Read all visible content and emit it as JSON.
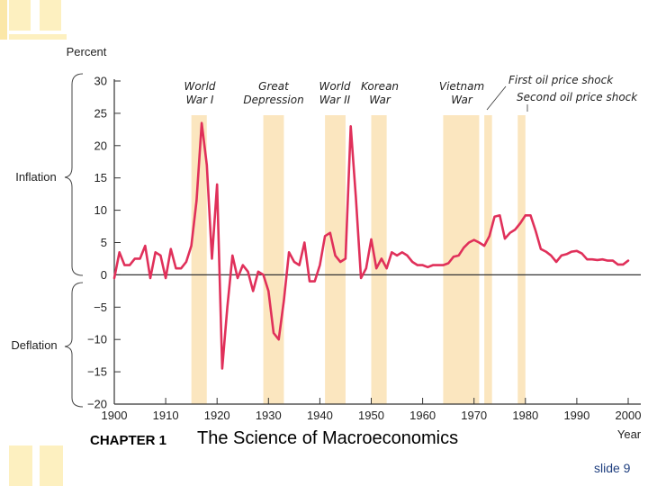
{
  "footer": {
    "chapter": "CHAPTER 1",
    "title": "The Science of Macroeconomics",
    "slide": "slide 9"
  },
  "colors": {
    "line": "#e0305a",
    "shade": "#fbe6bf",
    "deco": "#fdf0c0",
    "axis": "#333333"
  },
  "chart_data": {
    "type": "line",
    "title": "",
    "ylabel": "Percent",
    "xlabel": "Year",
    "xlim": [
      1900,
      2000
    ],
    "ylim": [
      -20,
      30
    ],
    "x_ticks": [
      "1900",
      "1910",
      "1920",
      "1930",
      "1940",
      "1950",
      "1960",
      "1970",
      "1980",
      "1990",
      "2000"
    ],
    "y_ticks": [
      "30",
      "25",
      "20",
      "15",
      "10",
      "5",
      "0",
      "−5",
      "−10",
      "−15",
      "−20"
    ],
    "region_labels": {
      "inflation": "Inflation",
      "deflation": "Deflation"
    },
    "events": [
      {
        "lines": [
          "World",
          "War I"
        ],
        "start": 1915,
        "end": 1918
      },
      {
        "lines": [
          "Great",
          "Depression"
        ],
        "start": 1929,
        "end": 1933
      },
      {
        "lines": [
          "World",
          "War II"
        ],
        "start": 1941,
        "end": 1945
      },
      {
        "lines": [
          "Korean",
          "War"
        ],
        "start": 1950,
        "end": 1953
      },
      {
        "lines": [
          "Vietnam",
          "War"
        ],
        "start": 1964,
        "end": 1971
      },
      {
        "lines": [
          "First oil price shock"
        ],
        "start": 1972,
        "end": 1973.5
      },
      {
        "lines": [
          "Second oil price shock"
        ],
        "start": 1978.5,
        "end": 1980
      }
    ],
    "series": [
      {
        "name": "Inflation rate",
        "x": [
          1900,
          1901,
          1902,
          1903,
          1904,
          1905,
          1906,
          1907,
          1908,
          1909,
          1910,
          1911,
          1912,
          1913,
          1914,
          1915,
          1916,
          1917,
          1918,
          1919,
          1920,
          1921,
          1922,
          1923,
          1924,
          1925,
          1926,
          1927,
          1928,
          1929,
          1930,
          1931,
          1932,
          1933,
          1934,
          1935,
          1936,
          1937,
          1938,
          1939,
          1940,
          1941,
          1942,
          1943,
          1944,
          1945,
          1946,
          1947,
          1948,
          1949,
          1950,
          1951,
          1952,
          1953,
          1954,
          1955,
          1956,
          1957,
          1958,
          1959,
          1960,
          1961,
          1962,
          1963,
          1964,
          1965,
          1966,
          1967,
          1968,
          1969,
          1970,
          1971,
          1972,
          1973,
          1974,
          1975,
          1976,
          1977,
          1978,
          1979,
          1980,
          1981,
          1982,
          1983,
          1984,
          1985,
          1986,
          1987,
          1988,
          1989,
          1990,
          1991,
          1992,
          1993,
          1994,
          1995,
          1996,
          1997,
          1998,
          1999,
          2000
        ],
        "y": [
          -0.5,
          3.5,
          1.5,
          1.5,
          2.5,
          2.5,
          4.5,
          -0.5,
          3.5,
          3,
          -0.5,
          4,
          1,
          1,
          2,
          4.5,
          11.5,
          23.5,
          17,
          2.5,
          14,
          -14.5,
          -5,
          3,
          -0.5,
          1.5,
          0.5,
          -2.5,
          0.5,
          0,
          -2.5,
          -9,
          -10,
          -4,
          3.5,
          2,
          1.5,
          5,
          -1,
          -1,
          1.5,
          6,
          6.5,
          3,
          2,
          2.5,
          23,
          12,
          -0.5,
          1,
          5.5,
          1,
          2.5,
          1,
          3.5,
          3,
          3.5,
          3,
          2,
          1.5,
          1.5,
          1.2,
          1.5,
          1.5,
          1.5,
          1.8,
          2.8,
          3,
          4.2,
          5,
          5.4,
          5,
          4.5,
          6,
          9,
          9.2,
          5.6,
          6.5,
          7,
          8,
          9.2,
          9.2,
          6.8,
          4,
          3.6,
          3,
          2,
          3,
          3.2,
          3.6,
          3.7,
          3.3,
          2.4,
          2.4,
          2.3,
          2.4,
          2.2,
          2.2,
          1.6,
          1.6,
          2.2
        ]
      }
    ]
  }
}
